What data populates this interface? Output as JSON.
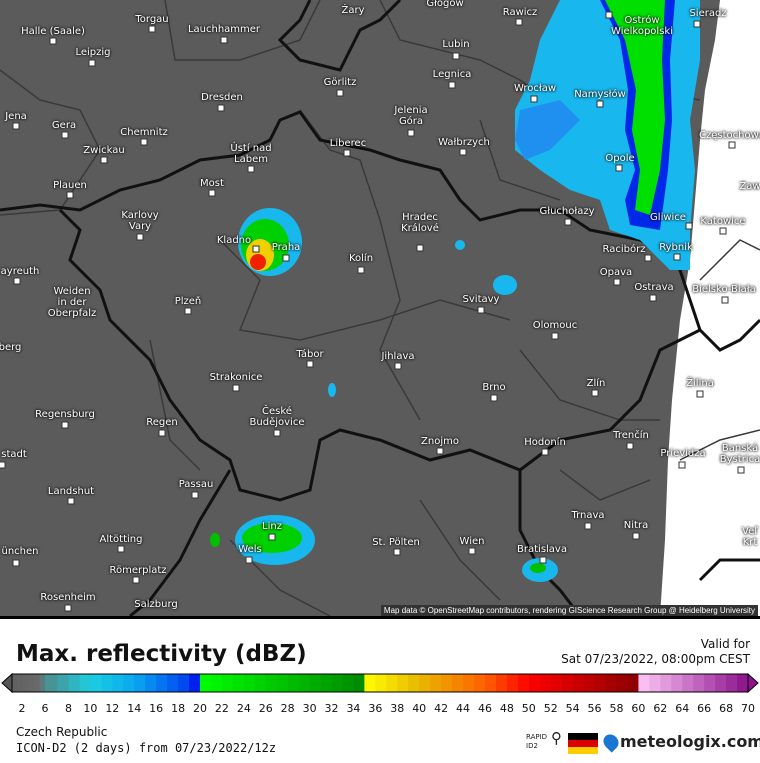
{
  "map": {
    "attribution": "Map data © OpenStreetMap contributors, rendering GIScience Research Group @ Heidelberg University",
    "cities": [
      {
        "name": "Żary"
      },
      {
        "name": "Głogów"
      },
      {
        "name": "Rawicz"
      },
      {
        "name": "Sieradz"
      },
      {
        "name": "Ostrów\nWielkopolski"
      },
      {
        "name": "Halle (Saale)"
      },
      {
        "name": "Torgau"
      },
      {
        "name": "Lauchhammer"
      },
      {
        "name": "Leipzig"
      },
      {
        "name": "Lubin"
      },
      {
        "name": "Legnica"
      },
      {
        "name": "Görlitz"
      },
      {
        "name": "Wrocław"
      },
      {
        "name": "Namysłów"
      },
      {
        "name": "Dresden"
      },
      {
        "name": "Jena"
      },
      {
        "name": "Gera"
      },
      {
        "name": "Chemnitz"
      },
      {
        "name": "Jelenia\nGóra"
      },
      {
        "name": "Wałbrzych"
      },
      {
        "name": "Liberec"
      },
      {
        "name": "Zwickau"
      },
      {
        "name": "Ústí nad\nLabem"
      },
      {
        "name": "Częstochowa"
      },
      {
        "name": "Opole"
      },
      {
        "name": "Plauen"
      },
      {
        "name": "Most"
      },
      {
        "name": "Zaw"
      },
      {
        "name": "Karlovy\nVary"
      },
      {
        "name": "Hradec\nKrálové"
      },
      {
        "name": "Głuchołazy"
      },
      {
        "name": "Gliwice"
      },
      {
        "name": "Katowice"
      },
      {
        "name": "Kladno"
      },
      {
        "name": "Praha"
      },
      {
        "name": "Racibórz"
      },
      {
        "name": "Rybnik"
      },
      {
        "name": "Kolín"
      },
      {
        "name": "ayreuth"
      },
      {
        "name": "Opava"
      },
      {
        "name": "Ostrava"
      },
      {
        "name": "Bielsko-Biała"
      },
      {
        "name": "Svitavy"
      },
      {
        "name": "Weiden\nin der\nOberpfalz"
      },
      {
        "name": "Plzeň"
      },
      {
        "name": "Olomouc"
      },
      {
        "name": "berg"
      },
      {
        "name": "Tábor"
      },
      {
        "name": "Jihlava"
      },
      {
        "name": "Strakonice"
      },
      {
        "name": "Brno"
      },
      {
        "name": "Zlín"
      },
      {
        "name": "Žilina"
      },
      {
        "name": "Regensburg"
      },
      {
        "name": "Regen"
      },
      {
        "name": "České\nBudějovice"
      },
      {
        "name": "Znojmo"
      },
      {
        "name": "Hodonín"
      },
      {
        "name": "Trenčín"
      },
      {
        "name": "Prievidza"
      },
      {
        "name": "Banská\nBystrica"
      },
      {
        "name": "stadt"
      },
      {
        "name": "Passau"
      },
      {
        "name": "Landshut"
      },
      {
        "name": "Trnava"
      },
      {
        "name": "Nitra"
      },
      {
        "name": "Linz"
      },
      {
        "name": "Altötting"
      },
      {
        "name": "Wels"
      },
      {
        "name": "St. Pölten"
      },
      {
        "name": "Wien"
      },
      {
        "name": "Bratislava"
      },
      {
        "name": "ünchen"
      },
      {
        "name": "Römerplatz"
      },
      {
        "name": "Rosenheim"
      },
      {
        "name": "Salzburg"
      },
      {
        "name": "Veľ\nKrt"
      }
    ]
  },
  "legend": {
    "title": "Max. reflectivity (dBZ)",
    "valid_label": "Valid for",
    "valid_time": "Sat 07/23/2022, 08:00pm CEST",
    "ticks": [
      "2",
      "6",
      "8",
      "10",
      "12",
      "14",
      "16",
      "18",
      "20",
      "22",
      "24",
      "26",
      "28",
      "30",
      "32",
      "34",
      "36",
      "38",
      "40",
      "42",
      "44",
      "46",
      "48",
      "50",
      "52",
      "54",
      "56",
      "58",
      "60",
      "62",
      "64",
      "66",
      "68",
      "70"
    ],
    "color_stops": [
      {
        "dbz": 0,
        "color": "#606060"
      },
      {
        "dbz": 5,
        "color": "#6a6a6a"
      },
      {
        "dbz": 6,
        "color": "#4d8a8a"
      },
      {
        "dbz": 10,
        "color": "#1ccfe0"
      },
      {
        "dbz": 14,
        "color": "#0aa8f0"
      },
      {
        "dbz": 19,
        "color": "#0040f0"
      },
      {
        "dbz": 20,
        "color": "#0000e8"
      },
      {
        "dbz": 20.01,
        "color": "#00ff00"
      },
      {
        "dbz": 35,
        "color": "#008800"
      },
      {
        "dbz": 35.01,
        "color": "#ffff00"
      },
      {
        "dbz": 40,
        "color": "#e8b800"
      },
      {
        "dbz": 46,
        "color": "#ff6000"
      },
      {
        "dbz": 50,
        "color": "#ff0000"
      },
      {
        "dbz": 60,
        "color": "#8a0000"
      },
      {
        "dbz": 60.01,
        "color": "#ffc8f8"
      },
      {
        "dbz": 70,
        "color": "#8a108a"
      }
    ],
    "region": "Czech Republic",
    "model": "ICON-D2 (2 days) from 07/23/2022/12z",
    "rapid_label": "RAPID\nID2",
    "brand": "meteologix.com",
    "flag_colors": [
      "#000000",
      "#dd0000",
      "#ffcc00"
    ]
  }
}
